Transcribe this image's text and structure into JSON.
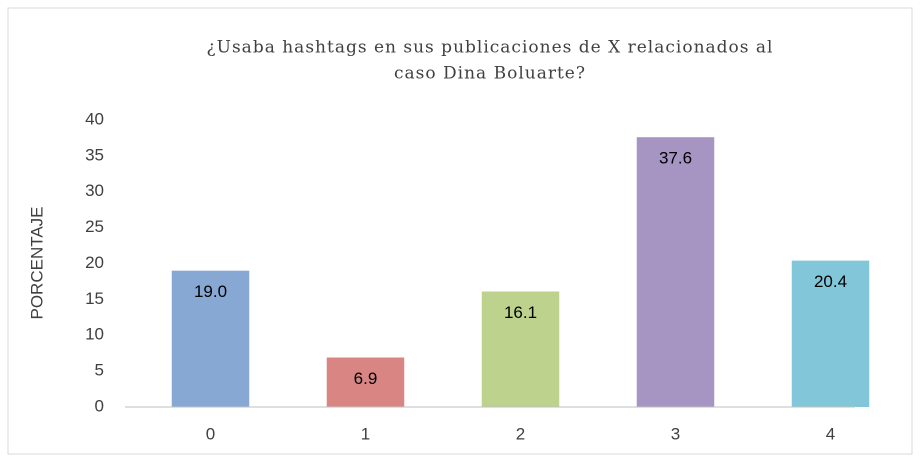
{
  "chart_data": {
    "type": "bar",
    "title": [
      "¿Usaba hashtags en sus publicaciones de X relacionados al",
      "caso Dina Boluarte?"
    ],
    "y_label": "PORCENTAJE",
    "categories": [
      "0",
      "1",
      "2",
      "3",
      "4"
    ],
    "values": [
      19.0,
      6.9,
      16.1,
      37.6,
      20.4
    ],
    "value_labels": [
      "19.0",
      "6.9",
      "16.1",
      "37.6",
      "20.4"
    ],
    "colors": [
      "#86a8d3",
      "#d98584",
      "#bdd28c",
      "#a694c2",
      "#82c7d9"
    ],
    "ylim": [
      0,
      40
    ],
    "yticks": [
      0,
      5,
      10,
      15,
      20,
      25,
      30,
      35,
      40
    ],
    "grid": false
  }
}
